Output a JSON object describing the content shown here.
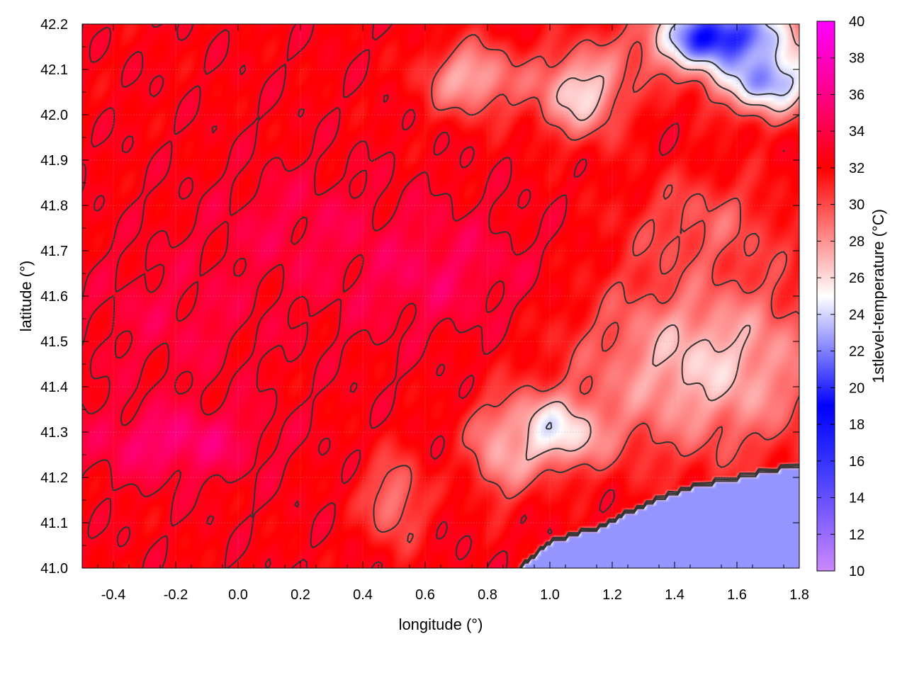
{
  "chart_data": {
    "type": "heatmap",
    "title": "",
    "xlabel": "longitude (°)",
    "ylabel": "latitude (°)",
    "colorbar_label": "1stlevel-temperature (°C)",
    "xlim": [
      -0.5,
      1.8
    ],
    "ylim": [
      41.0,
      42.2
    ],
    "clim": [
      10,
      40
    ],
    "x_ticks": [
      -0.4,
      -0.2,
      0.0,
      0.2,
      0.4,
      0.6,
      0.8,
      1.0,
      1.2,
      1.4,
      1.6,
      1.8
    ],
    "x_tick_labels": [
      "-0.4",
      "-0.2",
      "0.0",
      "0.2",
      "0.4",
      "0.6",
      "0.8",
      "1.0",
      "1.2",
      "1.4",
      "1.6",
      "1.8"
    ],
    "y_ticks": [
      41.0,
      41.1,
      41.2,
      41.3,
      41.4,
      41.5,
      41.6,
      41.7,
      41.8,
      41.9,
      42.0,
      42.1,
      42.2
    ],
    "y_tick_labels": [
      "41.0",
      "41.1",
      "41.2",
      "41.3",
      "41.4",
      "41.5",
      "41.6",
      "41.7",
      "41.8",
      "41.9",
      "42.0",
      "42.1",
      "42.2"
    ],
    "colorbar_ticks": [
      10,
      12,
      14,
      16,
      18,
      20,
      22,
      24,
      26,
      28,
      30,
      32,
      34,
      36,
      38,
      40
    ],
    "colorbar_tick_labels": [
      "10",
      "12",
      "14",
      "16",
      "18",
      "20",
      "22",
      "24",
      "26",
      "28",
      "30",
      "32",
      "34",
      "36",
      "38",
      "40"
    ],
    "colormap": [
      [
        10,
        "#cc88ff"
      ],
      [
        16,
        "#3333ff"
      ],
      [
        19,
        "#0000ff"
      ],
      [
        25,
        "#ffffff"
      ],
      [
        32,
        "#ff0000"
      ],
      [
        36,
        "#ff0088"
      ],
      [
        40,
        "#ff00ff"
      ]
    ],
    "contour_color": "#333333",
    "grid": true,
    "field_features": [
      {
        "kind": "base",
        "value": 32.5
      },
      {
        "kind": "blob",
        "lon": -0.2,
        "lat": 41.28,
        "rx": 0.28,
        "ry": 0.08,
        "value": 35.5
      },
      {
        "kind": "blob",
        "lon": 0.62,
        "lat": 41.65,
        "rx": 0.35,
        "ry": 0.13,
        "value": 34.5
      },
      {
        "kind": "blob",
        "lon": 0.2,
        "lat": 41.75,
        "rx": 0.3,
        "ry": 0.12,
        "value": 34.0
      },
      {
        "kind": "blob",
        "lon": -0.2,
        "lat": 41.55,
        "rx": 0.3,
        "ry": 0.15,
        "value": 33.8
      },
      {
        "kind": "blob",
        "lon": 1.5,
        "lat": 41.45,
        "rx": 0.4,
        "ry": 0.2,
        "value": 26.5
      },
      {
        "kind": "blob",
        "lon": 1.0,
        "lat": 41.3,
        "rx": 0.18,
        "ry": 0.08,
        "value": 24.5
      },
      {
        "kind": "blob",
        "lon": 0.85,
        "lat": 41.25,
        "rx": 0.1,
        "ry": 0.1,
        "value": 27.5
      },
      {
        "kind": "blob",
        "lon": 0.5,
        "lat": 41.15,
        "rx": 0.1,
        "ry": 0.1,
        "value": 28.5
      },
      {
        "kind": "blob",
        "lon": 0.75,
        "lat": 42.08,
        "rx": 0.15,
        "ry": 0.08,
        "value": 27.0
      },
      {
        "kind": "blob",
        "lon": 1.1,
        "lat": 42.05,
        "rx": 0.15,
        "ry": 0.1,
        "value": 26.0
      },
      {
        "kind": "blob",
        "lon": 1.55,
        "lat": 42.17,
        "rx": 0.22,
        "ry": 0.08,
        "value": 18.5
      },
      {
        "kind": "blob",
        "lon": 1.7,
        "lat": 42.08,
        "rx": 0.15,
        "ry": 0.08,
        "value": 22.0
      },
      {
        "kind": "blob",
        "lon": 1.5,
        "lat": 41.75,
        "rx": 0.25,
        "ry": 0.12,
        "value": 29.5
      },
      {
        "kind": "sea",
        "value": 22.5,
        "coast": [
          [
            0.9,
            41.0
          ],
          [
            1.0,
            41.06
          ],
          [
            1.15,
            41.09
          ],
          [
            1.3,
            41.14
          ],
          [
            1.45,
            41.18
          ],
          [
            1.6,
            41.2
          ],
          [
            1.8,
            41.23
          ]
        ]
      }
    ]
  }
}
